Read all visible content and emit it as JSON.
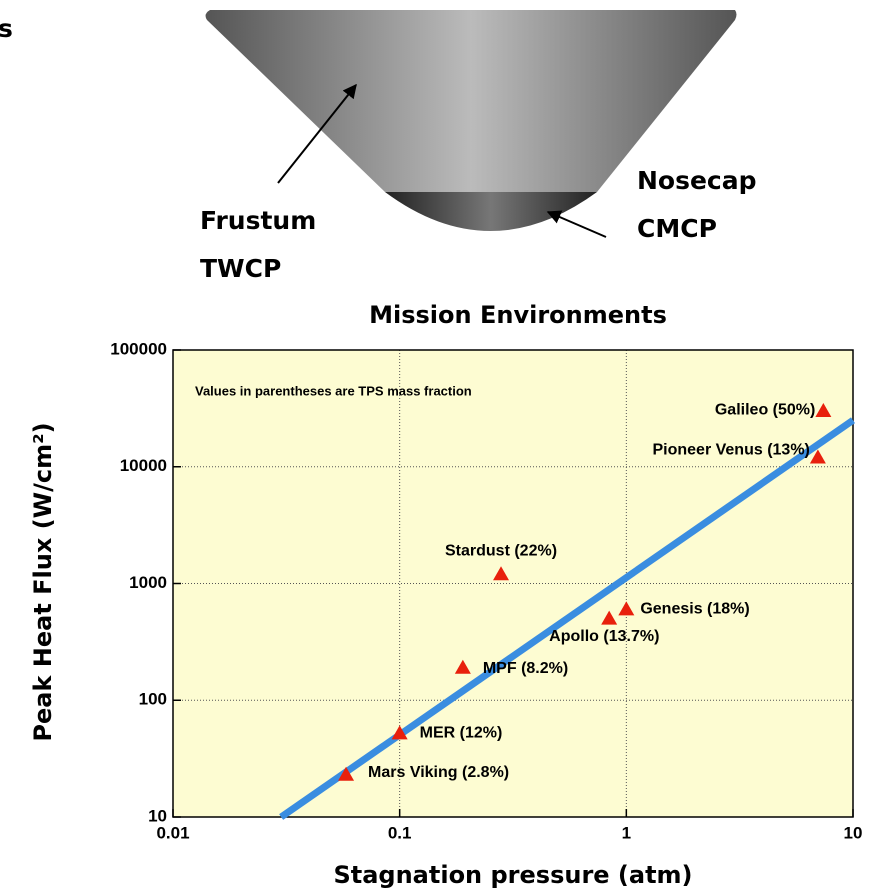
{
  "fragment": "s",
  "diagram": {
    "frustum": [
      "Frustum",
      "TWCP"
    ],
    "nosecap": [
      "Nosecap",
      "CMCP"
    ]
  },
  "chart_data": {
    "type": "scatter",
    "title": "Mission Environments",
    "x_label": "Stagnation pressure (atm)",
    "y_label": "Peak Heat Flux (W/cm²)",
    "annotation": "Values in parentheses are TPS mass fraction",
    "point_labels": [
      "Galileo (50%)",
      "Pioneer Venus (13%)",
      "Stardust (22%)",
      "Genesis (18%)",
      "Apollo (13.7%)",
      "MPF (8.2%)",
      "MER (12%)",
      "Mars Viking (2.8%)"
    ],
    "x": [
      7.4,
      7.0,
      0.28,
      1.0,
      0.84,
      0.19,
      0.1,
      0.058
    ],
    "values": [
      30000,
      12000,
      1200,
      600,
      500,
      190,
      52,
      23
    ],
    "color": "#e8200c",
    "fit_line": {
      "x": [
        0.03,
        10
      ],
      "values": [
        10,
        25000
      ],
      "color": "#3a8de0"
    },
    "xlim": [
      0.01,
      10
    ],
    "ylim": [
      10,
      100000
    ],
    "xticks": [
      0.01,
      0.1,
      1,
      10
    ],
    "yticks": [
      10,
      100,
      1000,
      10000,
      100000
    ],
    "log_x": true,
    "log_y": true,
    "grid": true,
    "background": "#fdfcd2"
  }
}
